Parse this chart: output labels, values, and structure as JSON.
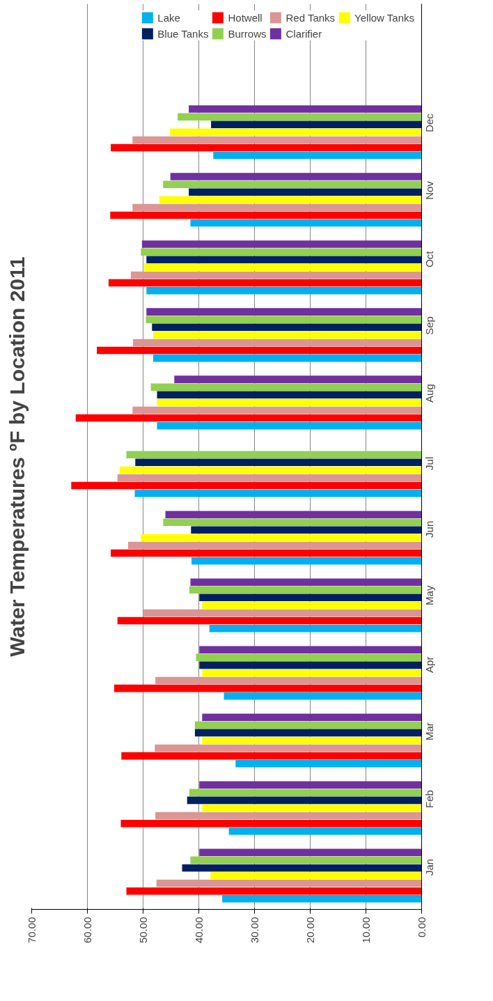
{
  "chart_data": {
    "type": "bar",
    "orientation": "horizontal",
    "title": "Water Temperatures ºF by Location 2011",
    "categories": [
      "Dec",
      "Nov",
      "Oct",
      "Sep",
      "Aug",
      "Jul",
      "Jun",
      "May",
      "Apr",
      "Mar",
      "Feb",
      "Jan"
    ],
    "series": [
      {
        "name": "Lake",
        "color": "#00b0f0",
        "values": [
          37.4,
          41.5,
          49.4,
          48.2,
          47.5,
          51.5,
          41.3,
          38.1,
          35.5,
          33.4,
          34.6,
          35.8
        ]
      },
      {
        "name": "Hotwell",
        "color": "#ff0000",
        "values": [
          55.8,
          55.9,
          56.2,
          58.3,
          62.1,
          62.9,
          55.8,
          54.6,
          55.2,
          53.9,
          54.0,
          53.0
        ]
      },
      {
        "name": "Red Tanks",
        "color": "#d99694",
        "values": [
          51.9,
          51.9,
          52.2,
          51.8,
          51.9,
          54.6,
          52.7,
          49.9,
          47.8,
          47.9,
          47.8,
          47.6
        ]
      },
      {
        "name": "Yellow Tanks",
        "color": "#ffff00",
        "values": [
          45.2,
          47.1,
          49.8,
          48.2,
          47.5,
          54.2,
          50.4,
          39.4,
          39.4,
          39.4,
          39.4,
          37.9
        ]
      },
      {
        "name": "Blue Tanks",
        "color": "#002060",
        "values": [
          37.8,
          41.8,
          49.4,
          48.4,
          47.5,
          51.4,
          41.4,
          39.9,
          39.9,
          40.7,
          42.1,
          43.0
        ]
      },
      {
        "name": "Burrows",
        "color": "#92d050",
        "values": [
          43.8,
          46.4,
          50.4,
          49.5,
          48.6,
          53.0,
          46.4,
          41.7,
          40.5,
          40.7,
          41.7,
          41.5
        ]
      },
      {
        "name": "Clarifier",
        "color": "#7030a0",
        "values": [
          41.8,
          45.1,
          50.2,
          49.4,
          44.4,
          null,
          46.0,
          41.5,
          39.9,
          39.4,
          39.9,
          39.9
        ]
      }
    ],
    "xlim": [
      70,
      0
    ],
    "xticks": [
      {
        "value": 70,
        "label": "70.00"
      },
      {
        "value": 60,
        "label": "60.00"
      },
      {
        "value": 50,
        "label": "50.00"
      },
      {
        "value": 40,
        "label": "40.00"
      },
      {
        "value": 30,
        "label": "30.00"
      },
      {
        "value": 20,
        "label": "20.00"
      },
      {
        "value": 10,
        "label": "10.00"
      },
      {
        "value": 0,
        "label": "0.00"
      }
    ],
    "grid": "x",
    "legend": "top right"
  }
}
